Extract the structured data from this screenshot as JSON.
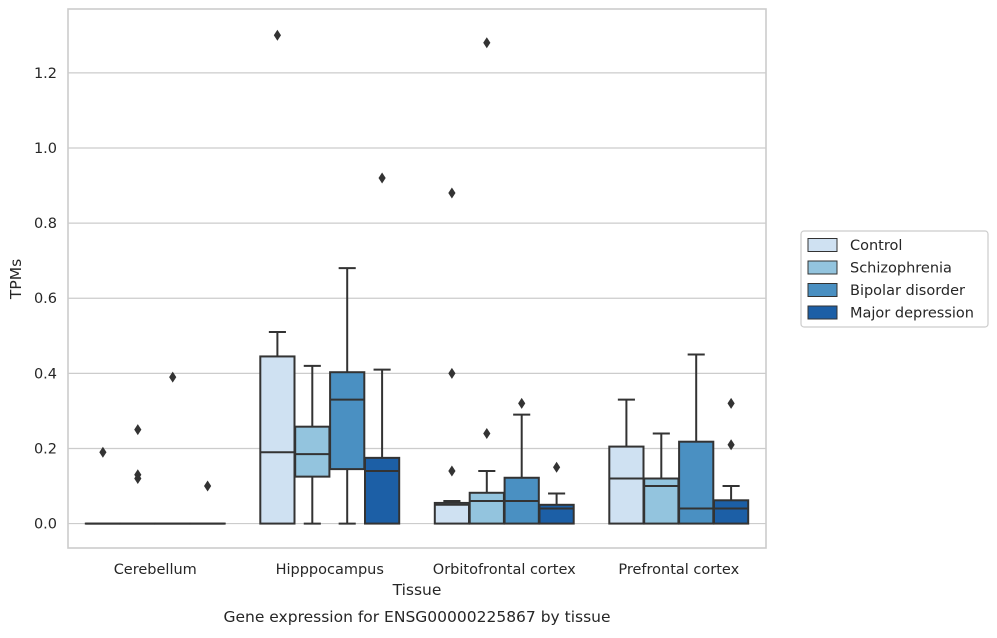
{
  "chart_data": {
    "type": "box",
    "title": "",
    "caption": "Gene expression for ENSG00000225867 by tissue",
    "xlabel": "Tissue",
    "ylabel": "TPMs",
    "ylim": [
      -0.065,
      1.37
    ],
    "yticks": [
      "0.0",
      "0.2",
      "0.4",
      "0.6",
      "0.8",
      "1.0",
      "1.2"
    ],
    "ytick_values": [
      0,
      0.2,
      0.4,
      0.6,
      0.8,
      1.0,
      1.2
    ],
    "grid": true,
    "legend_position": "outside-right",
    "categories": [
      "Cerebellum",
      "Hipppocampus",
      "Orbitofrontal cortex",
      "Prefrontal cortex"
    ],
    "series": [
      {
        "name": "Control",
        "color": "#cfe1f2",
        "boxes": [
          {
            "q1": 0,
            "median": 0,
            "q3": 0,
            "whislo": 0,
            "whishi": 0,
            "fliers": [
              0.19
            ]
          },
          {
            "q1": 0,
            "median": 0.19,
            "q3": 0.445,
            "whislo": 0,
            "whishi": 0.51,
            "fliers": [
              1.3
            ]
          },
          {
            "q1": 0,
            "median": 0.05,
            "q3": 0.055,
            "whislo": 0,
            "whishi": 0.06,
            "fliers": [
              0.14,
              0.4,
              0.88
            ]
          },
          {
            "q1": 0,
            "median": 0.12,
            "q3": 0.205,
            "whislo": 0,
            "whishi": 0.33,
            "fliers": []
          }
        ]
      },
      {
        "name": "Schizophrenia",
        "color": "#93c4de",
        "boxes": [
          {
            "q1": 0,
            "median": 0,
            "q3": 0,
            "whislo": 0,
            "whishi": 0,
            "fliers": [
              0.12,
              0.13,
              0.25
            ]
          },
          {
            "q1": 0.125,
            "median": 0.185,
            "q3": 0.258,
            "whislo": 0,
            "whishi": 0.42,
            "fliers": []
          },
          {
            "q1": 0,
            "median": 0.06,
            "q3": 0.082,
            "whislo": 0,
            "whishi": 0.14,
            "fliers": [
              0.24,
              1.28
            ]
          },
          {
            "q1": 0,
            "median": 0.1,
            "q3": 0.12,
            "whislo": 0,
            "whishi": 0.24,
            "fliers": []
          }
        ]
      },
      {
        "name": "Bipolar disorder",
        "color": "#4a90c2",
        "boxes": [
          {
            "q1": 0,
            "median": 0,
            "q3": 0,
            "whislo": 0,
            "whishi": 0,
            "fliers": [
              0.39
            ]
          },
          {
            "q1": 0.145,
            "median": 0.33,
            "q3": 0.403,
            "whislo": 0,
            "whishi": 0.68,
            "fliers": []
          },
          {
            "q1": 0,
            "median": 0.06,
            "q3": 0.122,
            "whislo": 0,
            "whishi": 0.29,
            "fliers": [
              0.32
            ]
          },
          {
            "q1": 0,
            "median": 0.04,
            "q3": 0.218,
            "whislo": 0,
            "whishi": 0.45,
            "fliers": []
          }
        ]
      },
      {
        "name": "Major depression",
        "color": "#1c5fa6",
        "boxes": [
          {
            "q1": 0,
            "median": 0,
            "q3": 0,
            "whislo": 0,
            "whishi": 0,
            "fliers": [
              0.1
            ]
          },
          {
            "q1": 0,
            "median": 0.14,
            "q3": 0.175,
            "whislo": 0,
            "whishi": 0.41,
            "fliers": [
              0.92
            ]
          },
          {
            "q1": 0,
            "median": 0.04,
            "q3": 0.05,
            "whislo": 0,
            "whishi": 0.08,
            "fliers": [
              0.15
            ]
          },
          {
            "q1": 0,
            "median": 0.04,
            "q3": 0.062,
            "whislo": 0,
            "whishi": 0.1,
            "fliers": [
              0.21,
              0.32
            ]
          }
        ]
      }
    ]
  }
}
